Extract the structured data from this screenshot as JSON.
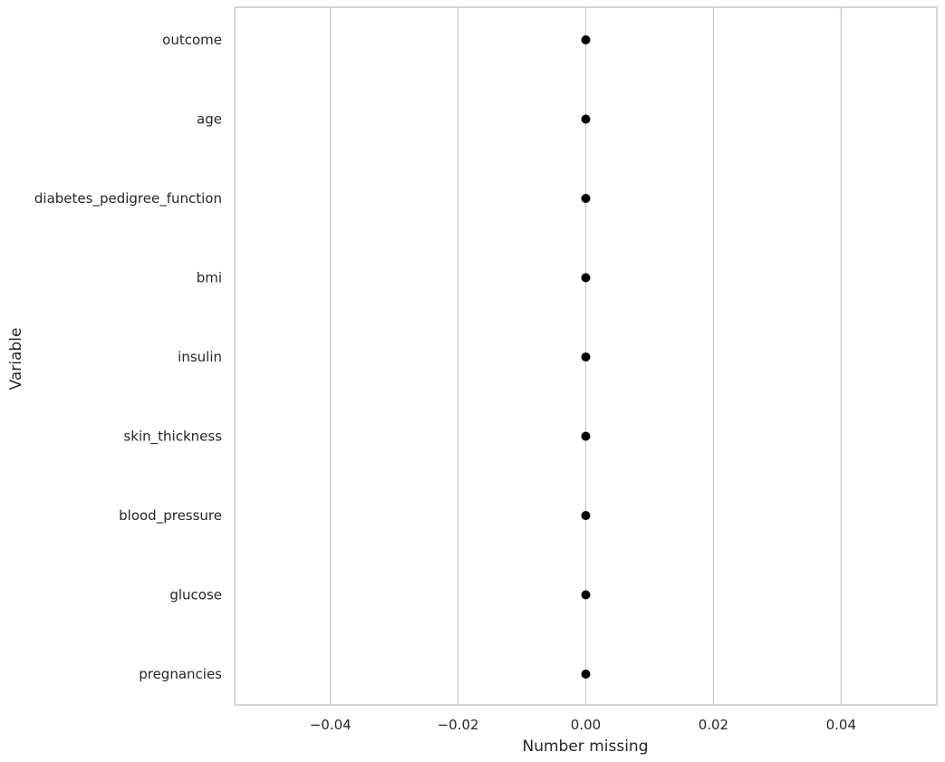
{
  "chart_data": {
    "type": "scatter",
    "xlabel": "Number missing",
    "ylabel": "Variable",
    "xlim": [
      -0.055,
      0.055
    ],
    "xticks": [
      -0.04,
      -0.02,
      0.0,
      0.02,
      0.04
    ],
    "xtick_labels": [
      "−0.04",
      "−0.02",
      "0.00",
      "0.02",
      "0.04"
    ],
    "categories": [
      "outcome",
      "age",
      "diabetes_pedigree_function",
      "bmi",
      "insulin",
      "skin_thickness",
      "blood_pressure",
      "glucose",
      "pregnancies"
    ],
    "values": [
      0,
      0,
      0,
      0,
      0,
      0,
      0,
      0,
      0
    ],
    "grid": "x-axis vertical lines",
    "marker_color": "#000000",
    "grid_color": "#cccccc"
  }
}
